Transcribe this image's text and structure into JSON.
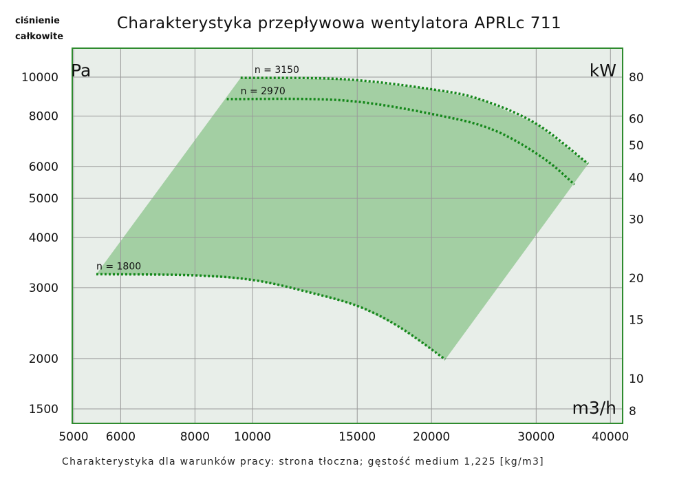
{
  "chart_data": {
    "type": "line",
    "title": "Charakterystyka przepływowa wentylatora APRLc 711",
    "ylabel": "ciśnienie całkowite",
    "ylabel_lines": [
      "ciśnienie",
      "całkowite"
    ],
    "y_unit": "Pa",
    "y2_unit": "kW",
    "x_unit": "m3/h",
    "footnote": "Charakterystyka dla warunków pracy: strona tłoczna; gęstość medium 1,225 [kg/m3]",
    "x_scale": "log",
    "y_scale": "log",
    "xlim": [
      4950,
      45500
    ],
    "ylim": [
      1380,
      11800
    ],
    "x_ticks": [
      "5000",
      "6000",
      "8000",
      "10000",
      "15000",
      "20000",
      "30000",
      "40000"
    ],
    "y_ticks": [
      "10000",
      "8000",
      "6000",
      "5000",
      "4000",
      "3000",
      "2000",
      "1500"
    ],
    "y2_ticks": [
      "80",
      "60",
      "50",
      "40",
      "30",
      "20",
      "15",
      "10",
      "8"
    ],
    "grid": true,
    "series": [
      {
        "name": "n = 3150",
        "x": [
          9550,
          14250,
          20150,
          24300,
          30050,
          36700
        ],
        "y": [
          9960,
          9880,
          9315,
          8780,
          7650,
          6090
        ]
      },
      {
        "name": "n = 2970",
        "x": [
          9050,
          14250,
          20700,
          25600,
          30850,
          34800
        ],
        "y": [
          8820,
          8750,
          8020,
          7360,
          6290,
          5410
        ]
      },
      {
        "name": "n = 1800",
        "x": [
          5460,
          7930,
          10070,
          12470,
          15030,
          17630,
          21100
        ],
        "y": [
          3240,
          3220,
          3130,
          2920,
          2700,
          2400,
          1990
        ]
      }
    ],
    "colors": {
      "plot_bg": "#e8eee9",
      "fill": "#a3cfa3",
      "curve": "#14871a",
      "border": "#2e8b2e",
      "grid": "#9a9a9a"
    }
  }
}
